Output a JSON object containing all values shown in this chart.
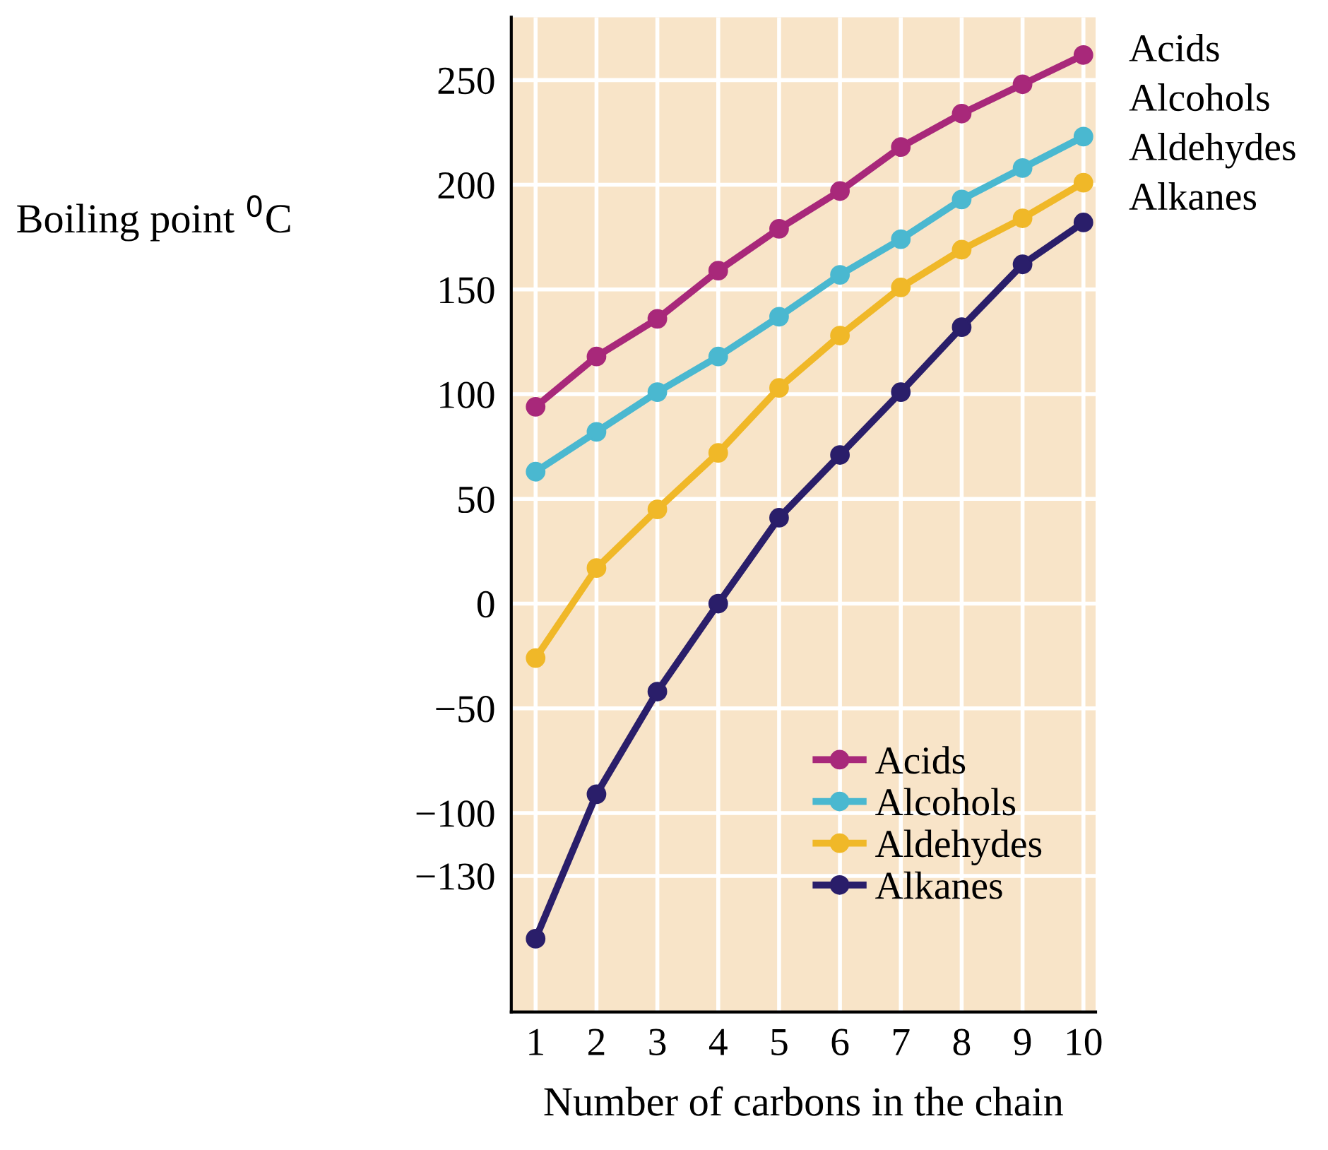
{
  "chart_data": {
    "type": "line",
    "xlabel": "Number of carbons in the chain",
    "ylabel": "Boiling point $^{0}$C",
    "x": [
      1,
      2,
      3,
      4,
      5,
      6,
      7,
      8,
      9,
      10
    ],
    "series": [
      {
        "name": "Acids",
        "color": "#a8287a",
        "values": [
          94,
          118,
          136,
          159,
          179,
          197,
          218,
          234,
          248,
          262
        ]
      },
      {
        "name": "Alcohols",
        "color": "#4ab8d0",
        "values": [
          63,
          82,
          101,
          118,
          137,
          157,
          174,
          193,
          208,
          223
        ]
      },
      {
        "name": "Aldehydes",
        "color": "#f0b828",
        "values": [
          -26,
          17,
          45,
          72,
          103,
          128,
          151,
          169,
          184,
          201
        ]
      },
      {
        "name": "Alkanes",
        "color": "#2a1e6a",
        "values": [
          -160,
          -91,
          -42,
          0,
          41,
          71,
          101,
          132,
          162,
          182
        ]
      }
    ],
    "annotations": [
      "Acids",
      "Alcohols",
      "Aldehydes",
      "Alkanes"
    ],
    "xlim": [
      0.6,
      10.2
    ],
    "xticks": [
      1,
      2,
      3,
      4,
      5,
      6,
      7,
      8,
      9,
      10
    ],
    "ylim": [
      -195,
      280
    ],
    "yticks": [
      {
        "value": -130,
        "label": "−130"
      },
      {
        "value": -100,
        "label": "−100"
      },
      {
        "value": -50,
        "label": "−50"
      },
      0,
      50,
      100,
      150,
      200,
      250
    ],
    "grid": true,
    "legend": "bottom right",
    "marker": "circle",
    "line_style": "solid"
  }
}
